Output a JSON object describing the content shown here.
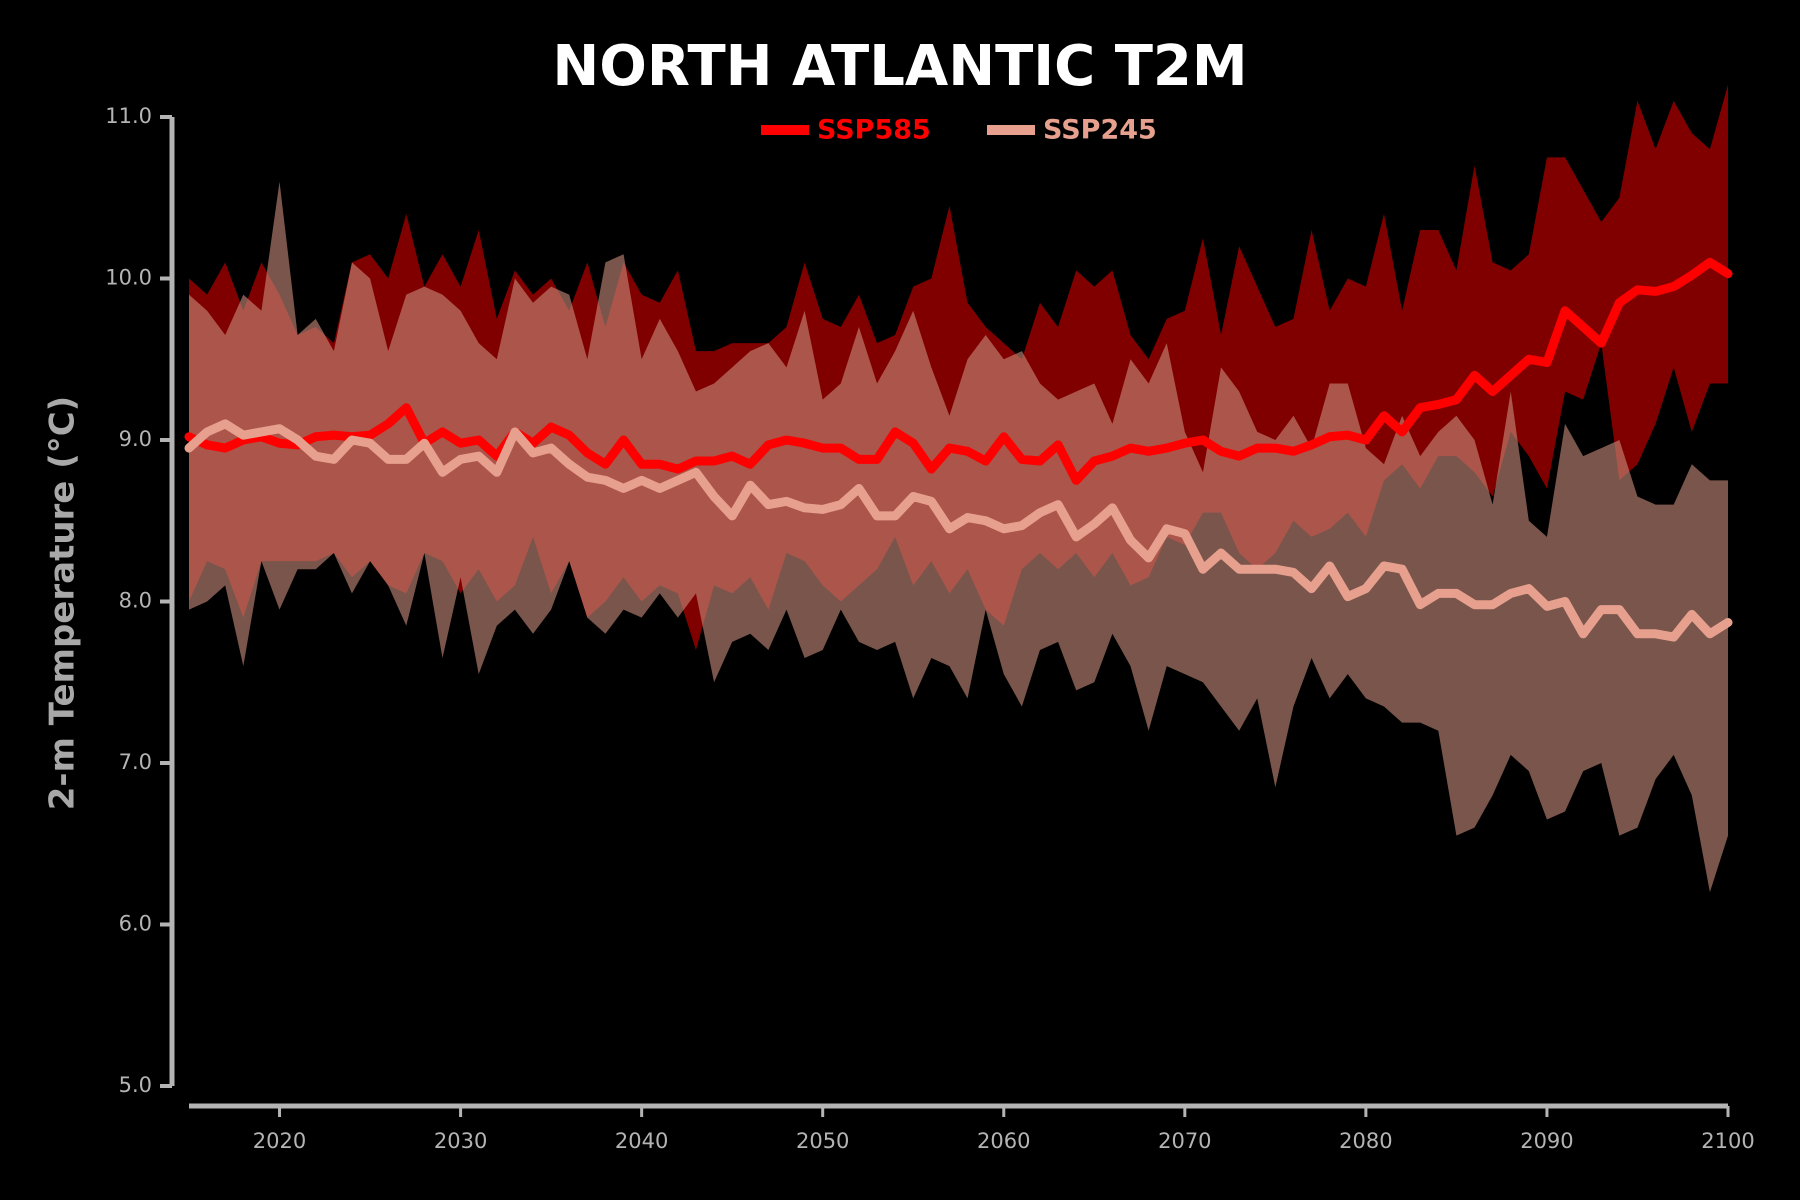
{
  "chart_data": {
    "type": "line",
    "title": "NORTH ATLANTIC T2M",
    "y_label": "2-m Temperature (°C)",
    "x": [
      2015,
      2016,
      2017,
      2018,
      2019,
      2020,
      2021,
      2022,
      2023,
      2024,
      2025,
      2026,
      2027,
      2028,
      2029,
      2030,
      2031,
      2032,
      2033,
      2034,
      2035,
      2036,
      2037,
      2038,
      2039,
      2040,
      2041,
      2042,
      2043,
      2044,
      2045,
      2046,
      2047,
      2048,
      2049,
      2050,
      2051,
      2052,
      2053,
      2054,
      2055,
      2056,
      2057,
      2058,
      2059,
      2060,
      2061,
      2062,
      2063,
      2064,
      2065,
      2066,
      2067,
      2068,
      2069,
      2070,
      2071,
      2072,
      2073,
      2074,
      2075,
      2076,
      2077,
      2078,
      2079,
      2080,
      2081,
      2082,
      2083,
      2084,
      2085,
      2086,
      2087,
      2088,
      2089,
      2090,
      2091,
      2092,
      2093,
      2094,
      2095,
      2096,
      2097,
      2098,
      2099,
      2100
    ],
    "xlim": [
      2015,
      2100
    ],
    "xticks": [
      2020,
      2030,
      2040,
      2050,
      2060,
      2070,
      2080,
      2090,
      2100
    ],
    "ylim": [
      5,
      11
    ],
    "yticks": [
      {
        "value": 5,
        "label": "5.0"
      },
      {
        "value": 6,
        "label": "6.0"
      },
      {
        "value": 7,
        "label": "7.0"
      },
      {
        "value": 8,
        "label": "8.0"
      },
      {
        "value": 9,
        "label": "9.0"
      },
      {
        "value": 10,
        "label": "10.0"
      },
      {
        "value": 11,
        "label": "11.0"
      }
    ],
    "series": [
      {
        "name": "SSP585",
        "color": "#ff0000",
        "band_color": "#800000",
        "values": [
          9.02,
          8.97,
          8.95,
          9.0,
          9.02,
          8.98,
          8.97,
          9.02,
          9.03,
          9.02,
          9.03,
          9.1,
          9.2,
          8.98,
          9.05,
          8.98,
          9.0,
          8.9,
          9.05,
          8.98,
          9.08,
          9.03,
          8.92,
          8.85,
          9.0,
          8.85,
          8.85,
          8.82,
          8.87,
          8.87,
          8.9,
          8.85,
          8.97,
          9.0,
          8.98,
          8.95,
          8.95,
          8.88,
          8.88,
          9.05,
          8.98,
          8.82,
          8.95,
          8.93,
          8.87,
          9.02,
          8.88,
          8.87,
          8.97,
          8.75,
          8.87,
          8.9,
          8.95,
          8.93,
          8.95,
          8.98,
          9.0,
          8.93,
          8.9,
          8.95,
          8.95,
          8.93,
          8.97,
          9.02,
          9.03,
          9.0,
          9.15,
          9.05,
          9.2,
          9.22,
          9.25,
          9.4,
          9.3,
          9.4,
          9.5,
          9.48,
          9.8,
          9.7,
          9.6,
          9.85,
          9.93,
          9.92,
          9.95,
          10.02,
          10.1,
          10.03
        ],
        "upper": [
          10.0,
          9.9,
          10.1,
          9.8,
          10.1,
          9.9,
          9.65,
          9.7,
          9.6,
          10.1,
          10.15,
          10.0,
          10.4,
          9.95,
          10.15,
          9.95,
          10.3,
          9.75,
          10.05,
          9.9,
          10.0,
          9.8,
          10.1,
          9.7,
          10.1,
          9.9,
          9.85,
          10.05,
          9.55,
          9.55,
          9.6,
          9.6,
          9.6,
          9.7,
          10.1,
          9.75,
          9.7,
          9.9,
          9.6,
          9.65,
          9.95,
          10.0,
          10.45,
          9.85,
          9.7,
          9.6,
          9.5,
          9.85,
          9.7,
          10.05,
          9.95,
          10.05,
          9.65,
          9.5,
          9.75,
          9.8,
          10.25,
          9.65,
          10.2,
          9.95,
          9.7,
          9.75,
          10.3,
          9.8,
          10.0,
          9.95,
          10.4,
          9.8,
          10.3,
          10.3,
          10.05,
          10.7,
          10.1,
          10.05,
          10.15,
          10.75,
          10.75,
          10.55,
          10.35,
          10.5,
          11.1,
          10.8,
          11.1,
          10.9,
          10.8,
          11.2
        ],
        "lower": [
          8.0,
          8.25,
          8.2,
          7.9,
          8.25,
          8.25,
          8.25,
          8.25,
          8.3,
          8.15,
          8.25,
          8.1,
          8.05,
          8.3,
          8.25,
          8.05,
          8.2,
          8.0,
          8.1,
          8.4,
          8.05,
          8.25,
          7.9,
          8.0,
          8.15,
          8.0,
          8.1,
          8.05,
          7.7,
          8.1,
          8.05,
          8.15,
          7.95,
          8.3,
          8.25,
          8.1,
          8.0,
          8.1,
          8.2,
          8.4,
          8.1,
          8.25,
          8.05,
          8.2,
          7.95,
          7.85,
          8.2,
          8.3,
          8.2,
          8.3,
          8.15,
          8.3,
          8.1,
          8.15,
          8.4,
          8.35,
          8.55,
          8.55,
          8.3,
          8.2,
          8.3,
          8.5,
          8.4,
          8.45,
          8.55,
          8.4,
          8.75,
          8.85,
          8.7,
          8.9,
          8.9,
          8.8,
          8.65,
          9.05,
          8.9,
          8.7,
          9.3,
          9.25,
          9.6,
          8.75,
          8.85,
          9.1,
          9.45,
          9.05,
          9.35,
          9.35
        ]
      },
      {
        "name": "SSP245",
        "color": "#e8a08e",
        "band_color": "#c98d7d",
        "values": [
          8.95,
          9.05,
          9.1,
          9.03,
          9.05,
          9.07,
          9.0,
          8.9,
          8.88,
          9.0,
          8.98,
          8.88,
          8.88,
          8.98,
          8.8,
          8.88,
          8.9,
          8.8,
          9.05,
          8.92,
          8.95,
          8.85,
          8.77,
          8.75,
          8.7,
          8.75,
          8.7,
          8.75,
          8.8,
          8.65,
          8.53,
          8.72,
          8.6,
          8.62,
          8.58,
          8.57,
          8.6,
          8.7,
          8.53,
          8.53,
          8.65,
          8.62,
          8.45,
          8.52,
          8.5,
          8.45,
          8.47,
          8.55,
          8.6,
          8.4,
          8.48,
          8.58,
          8.38,
          8.27,
          8.45,
          8.42,
          8.2,
          8.3,
          8.2,
          8.2,
          8.2,
          8.18,
          8.08,
          8.22,
          8.03,
          8.08,
          8.22,
          8.2,
          7.98,
          8.05,
          8.05,
          7.98,
          7.98,
          8.05,
          8.08,
          7.97,
          8.0,
          7.8,
          7.95,
          7.95,
          7.8,
          7.8,
          7.78,
          7.92,
          7.8,
          7.87
        ],
        "upper": [
          9.9,
          9.8,
          9.65,
          9.9,
          9.8,
          10.6,
          9.65,
          9.75,
          9.55,
          10.1,
          10.0,
          9.55,
          9.9,
          9.95,
          9.9,
          9.8,
          9.6,
          9.5,
          10.0,
          9.85,
          9.95,
          9.9,
          9.5,
          10.1,
          10.15,
          9.5,
          9.75,
          9.55,
          9.3,
          9.35,
          9.45,
          9.55,
          9.6,
          9.45,
          9.8,
          9.25,
          9.35,
          9.7,
          9.35,
          9.55,
          9.8,
          9.45,
          9.15,
          9.5,
          9.65,
          9.5,
          9.55,
          9.35,
          9.25,
          9.3,
          9.35,
          9.1,
          9.5,
          9.35,
          9.6,
          9.05,
          8.8,
          9.45,
          9.3,
          9.05,
          9.0,
          9.15,
          8.95,
          9.35,
          9.35,
          8.95,
          8.85,
          9.15,
          8.9,
          9.05,
          9.15,
          9.0,
          8.6,
          9.3,
          8.5,
          8.4,
          9.1,
          8.9,
          8.95,
          9.0,
          8.65,
          8.6,
          8.6,
          8.85,
          8.75,
          8.75
        ],
        "lower": [
          7.95,
          8.0,
          8.1,
          7.6,
          8.25,
          7.95,
          8.2,
          8.2,
          8.3,
          8.05,
          8.25,
          8.1,
          7.85,
          8.3,
          7.65,
          8.15,
          7.55,
          7.85,
          7.95,
          7.8,
          7.95,
          8.25,
          7.9,
          7.8,
          7.95,
          7.9,
          8.05,
          7.9,
          8.05,
          7.5,
          7.75,
          7.8,
          7.7,
          7.95,
          7.65,
          7.7,
          7.95,
          7.75,
          7.7,
          7.75,
          7.4,
          7.65,
          7.6,
          7.4,
          7.95,
          7.55,
          7.35,
          7.7,
          7.75,
          7.45,
          7.5,
          7.8,
          7.6,
          7.2,
          7.6,
          7.55,
          7.5,
          7.35,
          7.2,
          7.4,
          6.85,
          7.35,
          7.65,
          7.4,
          7.55,
          7.4,
          7.35,
          7.25,
          7.25,
          7.2,
          6.55,
          6.6,
          6.8,
          7.05,
          6.95,
          6.65,
          6.7,
          6.95,
          7.0,
          6.55,
          6.6,
          6.9,
          7.05,
          6.8,
          6.2,
          6.55
        ]
      }
    ]
  }
}
